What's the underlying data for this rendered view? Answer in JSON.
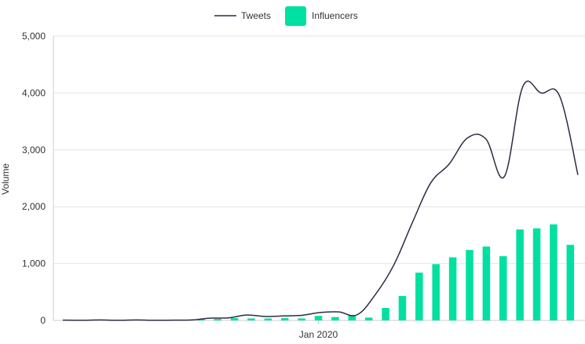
{
  "chart_data": {
    "type": "bar",
    "ylabel": "Volume",
    "xlabel": "",
    "ylim": [
      0,
      5000
    ],
    "y_ticks": [
      "0",
      "1,000",
      "2,000",
      "3,000",
      "4,000",
      "5,000"
    ],
    "y_tick_values": [
      0,
      1000,
      2000,
      3000,
      4000,
      5000
    ],
    "x_tick_label": "Jan 2020",
    "x_tick_index": 15,
    "grid": true,
    "legend": "top-center",
    "series": [
      {
        "name": "Tweets",
        "type": "line",
        "color": "#2b2d42",
        "values": [
          5,
          3,
          8,
          3,
          8,
          3,
          5,
          8,
          40,
          45,
          95,
          70,
          80,
          90,
          140,
          150,
          100,
          460,
          980,
          1720,
          2420,
          2750,
          3210,
          3190,
          2530,
          4110,
          4000,
          3950,
          2560
        ]
      },
      {
        "name": "Influencers",
        "type": "bar",
        "color": "#00e0a0",
        "values": [
          0,
          0,
          0,
          0,
          0,
          0,
          0,
          0,
          25,
          25,
          40,
          35,
          35,
          40,
          35,
          80,
          60,
          95,
          50,
          220,
          430,
          840,
          990,
          1110,
          1240,
          1300,
          1130,
          1600,
          1620,
          1690,
          1330
        ]
      }
    ]
  }
}
